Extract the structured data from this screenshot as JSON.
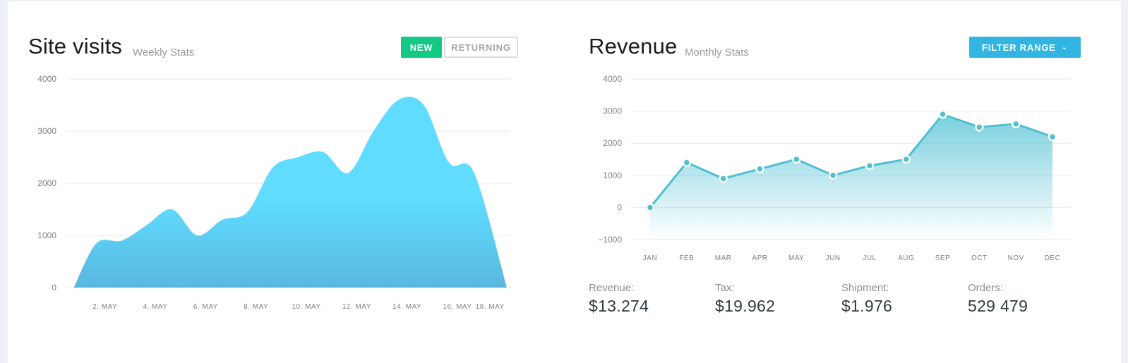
{
  "colors": {
    "accent_green": "#13c986",
    "accent_blue": "#33b5e3",
    "area_fill_top": "#5fdcff",
    "area_fill_bottom": "#5ab8df",
    "line_teal": "#4ec0d4"
  },
  "site_visits": {
    "title": "Site visits",
    "subtitle": "Weekly Stats",
    "buttons": {
      "new": "NEW",
      "returning": "RETURNING"
    }
  },
  "revenue": {
    "title": "Revenue",
    "subtitle": "Monthly Stats",
    "filter_label": "FILTER RANGE",
    "filter_icon": "chevron-down-icon",
    "stats": [
      {
        "label": "Revenue:",
        "value": "$13.274"
      },
      {
        "label": "Tax:",
        "value": "$19.962"
      },
      {
        "label": "Shipment:",
        "value": "$1.976"
      },
      {
        "label": "Orders:",
        "value": "529 479"
      }
    ]
  },
  "chart_data": [
    {
      "type": "area",
      "title": "Site visits",
      "subtitle": "Weekly Stats",
      "x_ticks": [
        "2. MAY",
        "4. MAY",
        "6. MAY",
        "8. MAY",
        "10. MAY",
        "12. MAY",
        "14. MAY",
        "16. MAY",
        "18. MAY"
      ],
      "y_ticks": [
        "0",
        "1000",
        "2000",
        "3000",
        "4000"
      ],
      "ylim": [
        0,
        4000
      ],
      "xlim": [
        1,
        18.3
      ],
      "grid": true,
      "x": [
        1.1,
        2,
        3,
        4,
        5,
        6,
        7,
        8,
        9,
        10,
        11,
        12,
        13,
        14,
        15,
        16,
        17,
        18.3
      ],
      "values": [
        0,
        850,
        900,
        1200,
        1500,
        1000,
        1300,
        1450,
        2300,
        2500,
        2600,
        2200,
        3000,
        3600,
        3500,
        2400,
        2200,
        0
      ]
    },
    {
      "type": "line",
      "title": "Revenue",
      "subtitle": "Monthly Stats",
      "categories": [
        "JAN",
        "FEB",
        "MAR",
        "APR",
        "MAY",
        "JUN",
        "JUL",
        "AUG",
        "SEP",
        "OCT",
        "NOV",
        "DEC"
      ],
      "values": [
        0,
        1400,
        900,
        1200,
        1500,
        1000,
        1300,
        1500,
        2900,
        2500,
        2600,
        2200
      ],
      "y_ticks": [
        "−1000",
        "0",
        "1000",
        "2000",
        "3000",
        "4000"
      ],
      "ylim": [
        -1000,
        4000
      ],
      "grid": true
    }
  ]
}
